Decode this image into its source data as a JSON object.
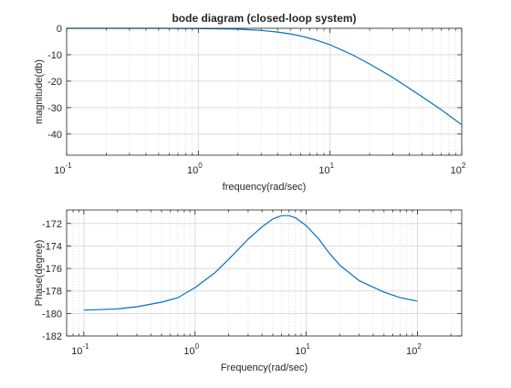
{
  "chart_data": [
    {
      "type": "line",
      "title": "bode diagram (closed-loop system)",
      "xlabel": "frequency(rad/sec)",
      "ylabel": "magnitude(db)",
      "xscale": "log",
      "xlim": [
        0.1,
        100
      ],
      "ylim": [
        -48,
        0
      ],
      "xticks": [
        {
          "base": "10",
          "exp": "-1",
          "value": 0.1
        },
        {
          "base": "10",
          "exp": "0",
          "value": 1
        },
        {
          "base": "10",
          "exp": "1",
          "value": 10
        },
        {
          "base": "10",
          "exp": "2",
          "value": 100
        }
      ],
      "yticks": [
        0,
        -10,
        -20,
        -30,
        -40
      ],
      "grid": true,
      "color": "#0072bd",
      "series": [
        {
          "x": [
            0.1,
            0.2,
            0.5,
            1,
            1.5,
            2,
            3,
            4,
            5,
            6,
            7,
            8,
            10,
            15,
            20,
            30,
            50,
            70,
            100
          ],
          "y": [
            0,
            0,
            0,
            -0.1,
            -0.2,
            -0.3,
            -0.8,
            -1.4,
            -2.1,
            -2.9,
            -3.8,
            -4.6,
            -6.2,
            -10.2,
            -13.5,
            -18.6,
            -25.9,
            -30.8,
            -36.5
          ]
        }
      ]
    },
    {
      "type": "line",
      "title": "",
      "xlabel": "Frequency(rad/sec)",
      "ylabel": "Phase(degree)",
      "xscale": "log",
      "xlim": [
        0.07,
        250
      ],
      "ylim": [
        -182,
        -170.8
      ],
      "xticks": [
        {
          "base": "10",
          "exp": "-1",
          "value": 0.1
        },
        {
          "base": "10",
          "exp": "0",
          "value": 1
        },
        {
          "base": "10",
          "exp": "1",
          "value": 10
        },
        {
          "base": "10",
          "exp": "2",
          "value": 100
        }
      ],
      "yticks": [
        -172,
        -174,
        -176,
        -178,
        -180,
        -182
      ],
      "grid": true,
      "color": "#0072bd",
      "series": [
        {
          "x": [
            0.1,
            0.2,
            0.3,
            0.5,
            0.7,
            1,
            1.5,
            2,
            3,
            4,
            5,
            6,
            7,
            8,
            10,
            13,
            16,
            20,
            30,
            50,
            70,
            100
          ],
          "y": [
            -179.7,
            -179.6,
            -179.4,
            -179.0,
            -178.6,
            -177.7,
            -176.4,
            -175.2,
            -173.4,
            -172.3,
            -171.6,
            -171.3,
            -171.3,
            -171.5,
            -172.2,
            -173.4,
            -174.6,
            -175.7,
            -177.1,
            -178.1,
            -178.6,
            -178.9
          ]
        }
      ]
    }
  ]
}
